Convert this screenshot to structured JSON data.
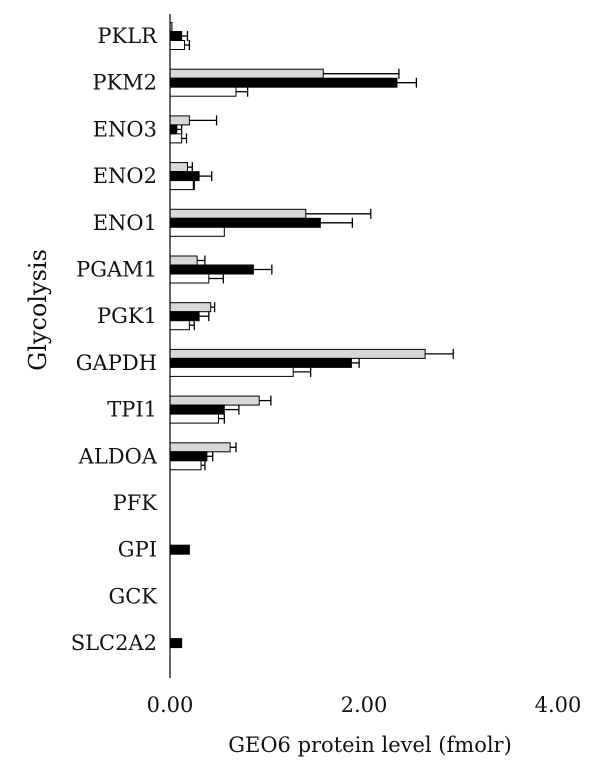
{
  "chart_data": {
    "type": "bar",
    "orientation": "horizontal",
    "title": "",
    "ylabel": "Glycolysis",
    "xlabel": "GEO6 protein level (fmolr)",
    "xlim": [
      0,
      4
    ],
    "xticks": [
      "0.00",
      "2.00",
      "4.00"
    ],
    "tick_values": [
      0,
      2,
      4
    ],
    "grid": false,
    "legend": "none",
    "colors": {
      "series_1": "#d8d8d8",
      "series_2": "#000000",
      "series_3": "#ffffff",
      "outline": "#000000"
    },
    "categories": [
      "PKLR",
      "PKM2",
      "ENO3",
      "ENO2",
      "ENO1",
      "PGAM1",
      "PGK1",
      "GAPDH",
      "TPI1",
      "ALDOA",
      "PFK",
      "GPI",
      "GCK",
      "SLC2A2"
    ],
    "series": [
      {
        "values": [
          0.02,
          1.58,
          0.2,
          0.18,
          1.4,
          0.28,
          0.42,
          2.63,
          0.92,
          0.62,
          null,
          null,
          null,
          null
        ],
        "error": [
          0.0,
          0.78,
          0.28,
          0.05,
          0.67,
          0.08,
          0.04,
          0.29,
          0.12,
          0.06,
          null,
          null,
          null,
          null
        ]
      },
      {
        "values": [
          0.12,
          2.34,
          0.07,
          0.3,
          1.55,
          0.86,
          0.3,
          1.87,
          0.56,
          0.38,
          null,
          0.2,
          null,
          0.12
        ],
        "error": [
          0.06,
          0.2,
          0.05,
          0.13,
          0.33,
          0.19,
          0.1,
          0.08,
          0.15,
          0.06,
          null,
          0.0,
          null,
          0.0
        ]
      },
      {
        "values": [
          0.15,
          0.68,
          0.12,
          0.24,
          0.56,
          0.4,
          0.2,
          1.27,
          0.5,
          0.32,
          null,
          null,
          null,
          null
        ],
        "error": [
          0.05,
          0.12,
          0.05,
          0.01,
          0.0,
          0.15,
          0.05,
          0.18,
          0.06,
          0.04,
          null,
          null,
          null,
          null
        ]
      }
    ]
  }
}
